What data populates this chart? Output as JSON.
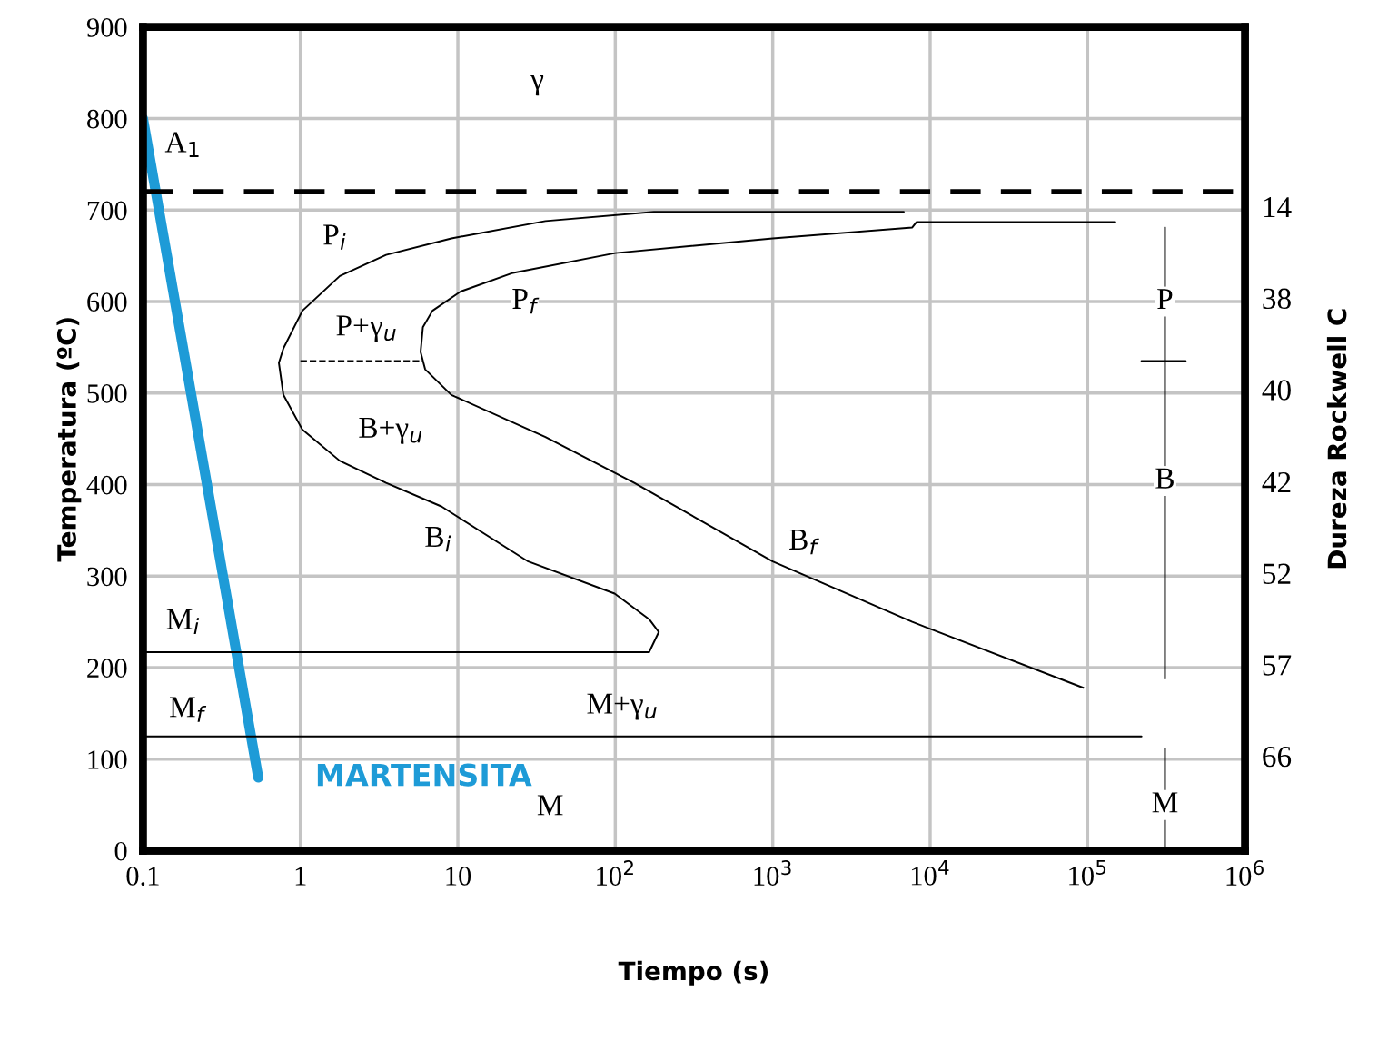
{
  "chart_data": {
    "type": "line",
    "xlabel": "Tiempo (s)",
    "ylabel": "Temperatura (ºC)",
    "y2label": "Dureza Rockwell C",
    "log": "x",
    "xlim": [
      0.1,
      1000000
    ],
    "ylim": [
      0,
      900
    ],
    "xticks": [
      0.1,
      1,
      10,
      {
        "value": 100,
        "label": "10$^{2}$"
      },
      {
        "value": 1000,
        "label": "10$^{3}$"
      },
      {
        "value": 10000,
        "label": "10$^{4}$"
      },
      {
        "value": 100000,
        "label": "10$^{5}$"
      },
      {
        "value": 1000000,
        "label": "10$^{6}$"
      }
    ],
    "yticks": [
      0,
      100,
      200,
      300,
      400,
      500,
      600,
      700,
      800,
      900
    ],
    "grid": true,
    "legend": false,
    "marker": "none",
    "series": [
      {
        "name": "MARTENSITA",
        "color": "#1e9bd7",
        "x": [
          0.1,
          0.54
        ],
        "values": [
          800,
          80
        ]
      },
      {
        "color": "#000000",
        "x": [
          6800,
          176,
          36,
          9.1,
          3.5,
          1.78,
          1.03,
          0.78,
          0.73,
          0.78,
          1.03,
          1.78,
          3.5,
          7.9,
          28,
          99,
          164,
          189,
          164,
          0.1
        ],
        "values": [
          698,
          698,
          688,
          669,
          651,
          628,
          590,
          549,
          533,
          498,
          460,
          426,
          402,
          376,
          316,
          281,
          253,
          239,
          217,
          217
        ]
      },
      {
        "color": "#000000",
        "x": [
          150000,
          8200,
          7700,
          1000,
          100,
          22,
          10.4,
          6.9,
          6.0,
          5.8,
          6.2,
          9.1,
          36,
          132,
          1000,
          7700,
          94000
        ],
        "values": [
          687,
          687,
          681,
          669,
          653,
          631,
          611,
          590,
          572,
          545,
          526,
          498,
          452,
          402,
          316,
          250,
          178
        ]
      },
      {
        "color": "#000000",
        "line_style": "dashed",
        "x": [
          1,
          6
        ],
        "values": [
          535,
          535
        ]
      },
      {
        "color": "#000000",
        "x": [
          0.1,
          220000
        ],
        "values": [
          125,
          125
        ]
      },
      {
        "color": "#000000",
        "x": [
          310000,
          310000
        ],
        "values": [
          681,
          188
        ]
      },
      {
        "color": "#000000",
        "x": [
          220000,
          420000
        ],
        "values": [
          535,
          535
        ]
      },
      {
        "color": "#000000",
        "x": [
          310000,
          310000
        ],
        "values": [
          112,
          0
        ]
      }
    ],
    "ref_lines": [
      {
        "axis": "y",
        "value": 720,
        "color": "#000000",
        "line_style": "dashed"
      }
    ],
    "annotations": [
      {
        "text": "γ",
        "x": 32,
        "y": 840
      },
      {
        "text": "A$_{1}$",
        "x": 0.18,
        "y": 771
      },
      {
        "text": "P$_{i}$",
        "x": 1.65,
        "y": 670
      },
      {
        "text": "P$_{f}$",
        "x": 26.5,
        "y": 600
      },
      "P+γ$_{u}$",
      "B+γ$_{u}$",
      {
        "text": "B$_{i}$",
        "x": 7.5,
        "y": 340
      },
      {
        "text": "B$_{f}$",
        "x": 1560,
        "y": 337
      },
      {
        "text": "M$_{i}$",
        "x": 0.18,
        "y": 250
      },
      {
        "text": "M$_{f}$",
        "x": 0.19,
        "y": 154
      },
      "M+γ$_{u}$",
      {
        "text": "M",
        "x": 38.6,
        "y": 47
      },
      {
        "text": "P",
        "x": 310000,
        "y": 600
      },
      {
        "text": "B",
        "x": 310000,
        "y": 404
      },
      {
        "text": "M",
        "x": 310000,
        "y": 50
      },
      "14",
      "38",
      "40",
      "42",
      "52",
      "57",
      "66"
    ]
  }
}
